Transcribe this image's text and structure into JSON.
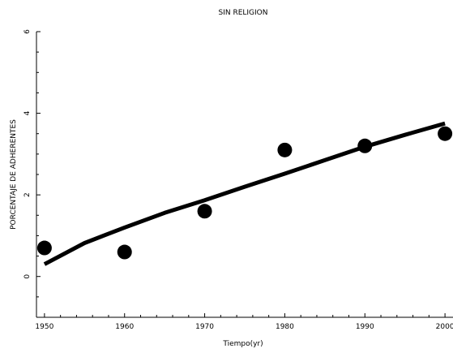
{
  "chart_data": {
    "type": "scatter",
    "title": "SIN RELIGION",
    "xlabel": "Tiempo(yr)",
    "ylabel": "PORCENTAJE DE ADHERENTES",
    "xlim": [
      1949,
      2001
    ],
    "ylim": [
      -1,
      6
    ],
    "xticks": [
      1950,
      1960,
      1970,
      1980,
      1990,
      2000
    ],
    "xticklabels": [
      "1950",
      "1960",
      "1970",
      "1980",
      "1990",
      "2000"
    ],
    "yticks": [
      0,
      2,
      4,
      6
    ],
    "yticklabels": [
      "0",
      "2",
      "4",
      "6"
    ],
    "grid": false,
    "legend": "none",
    "series": [
      {
        "type": "scatter",
        "x": [
          1950,
          1960,
          1970,
          1980,
          1990,
          2000
        ],
        "y": [
          0.7,
          0.6,
          1.6,
          3.1,
          3.2,
          3.5
        ]
      },
      {
        "type": "line",
        "x": [
          1950,
          1955,
          1960,
          1965,
          1970,
          1975,
          1980,
          1985,
          1990,
          1995,
          2000
        ],
        "y": [
          0.3,
          0.82,
          1.2,
          1.56,
          1.87,
          2.2,
          2.52,
          2.85,
          3.18,
          3.47,
          3.75
        ]
      }
    ],
    "colors": {
      "markers": "#000000",
      "line": "#000000",
      "axes": "#000000",
      "background": "#ffffff"
    }
  }
}
